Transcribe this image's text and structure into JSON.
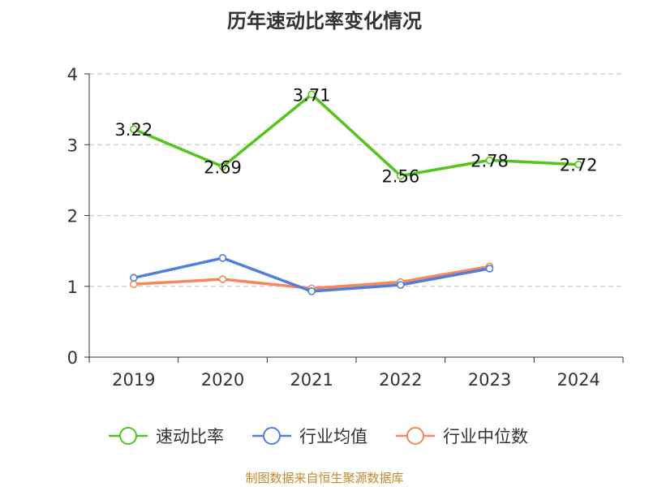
{
  "chart_data": {
    "type": "line",
    "title": "历年速动比率变化情况",
    "categories": [
      "2019",
      "2020",
      "2021",
      "2022",
      "2023",
      "2024"
    ],
    "ylim": [
      0,
      4
    ],
    "yticks": [
      0,
      1,
      2,
      3,
      4
    ],
    "grid": true,
    "legend_position": "bottom",
    "series": [
      {
        "name": "速动比率",
        "color": "#52c41a",
        "values": [
          3.22,
          2.69,
          3.71,
          2.56,
          2.78,
          2.72
        ],
        "labels": [
          "3.22",
          "2.69",
          "3.71",
          "2.56",
          "2.78",
          "2.72"
        ]
      },
      {
        "name": "行业均值",
        "color": "#4f7fdb",
        "values": [
          1.12,
          1.4,
          0.93,
          1.02,
          1.25,
          null
        ]
      },
      {
        "name": "行业中位数",
        "color": "#f5875a",
        "values": [
          1.03,
          1.1,
          0.97,
          1.06,
          1.28,
          null
        ]
      }
    ]
  },
  "footer": {
    "source": "制图数据来自恒生聚源数据库"
  }
}
